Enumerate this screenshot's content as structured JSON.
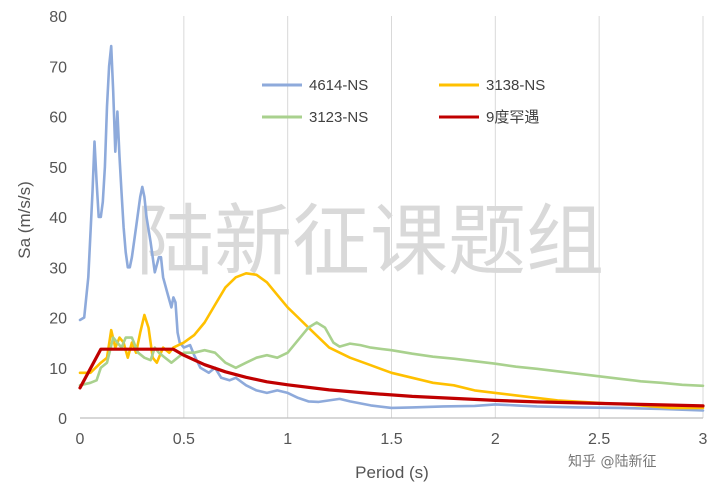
{
  "watermark": "陆新征课题组",
  "credit": "知乎 @陆新征",
  "chart_data": {
    "type": "line",
    "xlabel": "Period (s)",
    "ylabel": "Sa (m/s/s)",
    "xlim": [
      0,
      3
    ],
    "ylim": [
      0,
      80
    ],
    "x_ticks": [
      0,
      0.5,
      1,
      1.5,
      2,
      2.5,
      3
    ],
    "x_tick_labels": [
      "0",
      "0.5",
      "1",
      "1.5",
      "2",
      "2.5",
      "3"
    ],
    "y_ticks": [
      0,
      10,
      20,
      30,
      40,
      50,
      60,
      70,
      80
    ],
    "y_tick_labels": [
      "0",
      "10",
      "20",
      "30",
      "40",
      "50",
      "60",
      "70",
      "80"
    ],
    "grid": "vertical",
    "legend_position": "top-right inside plot",
    "series": [
      {
        "name": "4614-NS",
        "color": "#8eaadb",
        "points": [
          [
            0,
            19.5
          ],
          [
            0.02,
            20
          ],
          [
            0.04,
            28
          ],
          [
            0.06,
            45
          ],
          [
            0.07,
            55
          ],
          [
            0.08,
            47
          ],
          [
            0.09,
            40
          ],
          [
            0.1,
            40
          ],
          [
            0.11,
            43
          ],
          [
            0.12,
            50
          ],
          [
            0.13,
            62
          ],
          [
            0.14,
            70
          ],
          [
            0.15,
            74
          ],
          [
            0.16,
            65
          ],
          [
            0.17,
            53
          ],
          [
            0.18,
            61
          ],
          [
            0.19,
            52
          ],
          [
            0.2,
            45
          ],
          [
            0.21,
            38
          ],
          [
            0.22,
            33
          ],
          [
            0.23,
            30
          ],
          [
            0.24,
            30
          ],
          [
            0.25,
            32
          ],
          [
            0.27,
            38
          ],
          [
            0.29,
            44
          ],
          [
            0.3,
            46
          ],
          [
            0.31,
            44
          ],
          [
            0.32,
            40
          ],
          [
            0.34,
            35
          ],
          [
            0.36,
            29
          ],
          [
            0.38,
            32
          ],
          [
            0.39,
            32
          ],
          [
            0.4,
            28
          ],
          [
            0.42,
            25
          ],
          [
            0.44,
            22
          ],
          [
            0.45,
            24
          ],
          [
            0.46,
            23
          ],
          [
            0.47,
            17
          ],
          [
            0.48,
            15
          ],
          [
            0.5,
            14
          ],
          [
            0.53,
            14.5
          ],
          [
            0.55,
            12.5
          ],
          [
            0.58,
            10
          ],
          [
            0.62,
            9
          ],
          [
            0.65,
            10
          ],
          [
            0.68,
            8
          ],
          [
            0.72,
            7.5
          ],
          [
            0.75,
            8
          ],
          [
            0.8,
            6.5
          ],
          [
            0.85,
            5.5
          ],
          [
            0.9,
            5
          ],
          [
            0.95,
            5.5
          ],
          [
            1,
            5
          ],
          [
            1.05,
            4
          ],
          [
            1.1,
            3.3
          ],
          [
            1.15,
            3.2
          ],
          [
            1.2,
            3.5
          ],
          [
            1.25,
            3.8
          ],
          [
            1.3,
            3.3
          ],
          [
            1.4,
            2.5
          ],
          [
            1.5,
            2
          ],
          [
            1.6,
            2.1
          ],
          [
            1.75,
            2.3
          ],
          [
            1.9,
            2.4
          ],
          [
            2,
            2.7
          ],
          [
            2.1,
            2.5
          ],
          [
            2.2,
            2.3
          ],
          [
            2.4,
            2.1
          ],
          [
            2.6,
            2
          ],
          [
            2.8,
            1.8
          ],
          [
            3,
            1.5
          ]
        ]
      },
      {
        "name": "3138-NS",
        "color": "#ffc000",
        "points": [
          [
            0,
            9
          ],
          [
            0.05,
            9
          ],
          [
            0.1,
            11
          ],
          [
            0.13,
            12
          ],
          [
            0.15,
            17.5
          ],
          [
            0.17,
            14
          ],
          [
            0.19,
            16
          ],
          [
            0.21,
            15
          ],
          [
            0.23,
            12
          ],
          [
            0.25,
            15
          ],
          [
            0.27,
            13
          ],
          [
            0.29,
            17
          ],
          [
            0.31,
            20.5
          ],
          [
            0.33,
            18
          ],
          [
            0.35,
            12
          ],
          [
            0.37,
            11
          ],
          [
            0.4,
            14
          ],
          [
            0.43,
            13
          ],
          [
            0.45,
            14
          ],
          [
            0.5,
            15
          ],
          [
            0.55,
            16.5
          ],
          [
            0.6,
            19
          ],
          [
            0.65,
            22.5
          ],
          [
            0.7,
            26
          ],
          [
            0.75,
            28
          ],
          [
            0.8,
            28.8
          ],
          [
            0.85,
            28.5
          ],
          [
            0.9,
            27
          ],
          [
            0.95,
            24.5
          ],
          [
            1,
            22
          ],
          [
            1.05,
            20
          ],
          [
            1.1,
            18
          ],
          [
            1.15,
            16
          ],
          [
            1.2,
            14
          ],
          [
            1.3,
            12
          ],
          [
            1.4,
            10.5
          ],
          [
            1.5,
            9
          ],
          [
            1.6,
            8
          ],
          [
            1.7,
            7
          ],
          [
            1.8,
            6.5
          ],
          [
            1.9,
            5.5
          ],
          [
            2,
            5
          ],
          [
            2.1,
            4.5
          ],
          [
            2.2,
            4
          ],
          [
            2.3,
            3.5
          ],
          [
            2.5,
            3
          ],
          [
            2.7,
            2.5
          ],
          [
            2.85,
            2
          ],
          [
            3,
            2
          ]
        ]
      },
      {
        "name": "3123-NS",
        "color": "#a9d18e",
        "points": [
          [
            0,
            6.5
          ],
          [
            0.05,
            7
          ],
          [
            0.08,
            7.5
          ],
          [
            0.1,
            10
          ],
          [
            0.13,
            11
          ],
          [
            0.16,
            16
          ],
          [
            0.2,
            14
          ],
          [
            0.22,
            16
          ],
          [
            0.25,
            16
          ],
          [
            0.28,
            13
          ],
          [
            0.31,
            12
          ],
          [
            0.34,
            11.5
          ],
          [
            0.36,
            14
          ],
          [
            0.38,
            13
          ],
          [
            0.41,
            12
          ],
          [
            0.44,
            11
          ],
          [
            0.47,
            12
          ],
          [
            0.5,
            13
          ],
          [
            0.55,
            13
          ],
          [
            0.6,
            13.5
          ],
          [
            0.65,
            13
          ],
          [
            0.7,
            11
          ],
          [
            0.75,
            10
          ],
          [
            0.8,
            11
          ],
          [
            0.85,
            12
          ],
          [
            0.9,
            12.5
          ],
          [
            0.95,
            12
          ],
          [
            1,
            13
          ],
          [
            1.05,
            15.5
          ],
          [
            1.1,
            18
          ],
          [
            1.14,
            19
          ],
          [
            1.18,
            18
          ],
          [
            1.22,
            15
          ],
          [
            1.25,
            14.2
          ],
          [
            1.3,
            14.8
          ],
          [
            1.35,
            14.5
          ],
          [
            1.4,
            14
          ],
          [
            1.5,
            13.5
          ],
          [
            1.6,
            12.8
          ],
          [
            1.7,
            12.2
          ],
          [
            1.8,
            11.8
          ],
          [
            1.9,
            11.3
          ],
          [
            2,
            10.8
          ],
          [
            2.1,
            10.2
          ],
          [
            2.2,
            9.8
          ],
          [
            2.3,
            9.3
          ],
          [
            2.4,
            8.8
          ],
          [
            2.5,
            8.3
          ],
          [
            2.6,
            7.8
          ],
          [
            2.7,
            7.3
          ],
          [
            2.8,
            7
          ],
          [
            2.9,
            6.6
          ],
          [
            3,
            6.4
          ]
        ]
      },
      {
        "name": "9度罕遇",
        "color": "#c00000",
        "points": [
          [
            0,
            6
          ],
          [
            0.1,
            13.7
          ],
          [
            0.45,
            13.7
          ],
          [
            0.5,
            12.5
          ],
          [
            0.6,
            10.6
          ],
          [
            0.7,
            9.2
          ],
          [
            0.8,
            8.1
          ],
          [
            0.9,
            7.2
          ],
          [
            1,
            6.6
          ],
          [
            1.2,
            5.6
          ],
          [
            1.4,
            4.9
          ],
          [
            1.6,
            4.3
          ],
          [
            1.8,
            3.9
          ],
          [
            2,
            3.5
          ],
          [
            2.2,
            3.2
          ],
          [
            2.4,
            3
          ],
          [
            2.6,
            2.8
          ],
          [
            2.8,
            2.6
          ],
          [
            3,
            2.4
          ]
        ]
      }
    ]
  }
}
